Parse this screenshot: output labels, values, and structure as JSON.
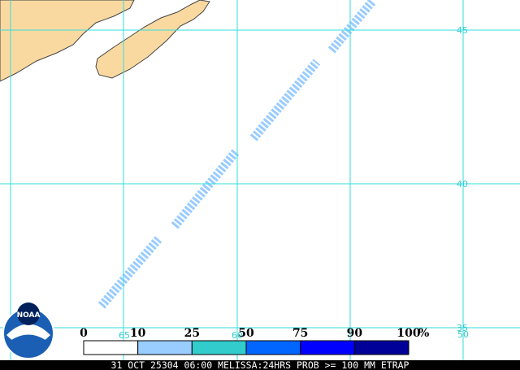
{
  "map": {
    "lat_labels": [
      "45",
      "40",
      "35"
    ],
    "lon_labels": [
      "65",
      "60",
      "50"
    ],
    "legend": {
      "ticks": [
        0,
        10,
        25,
        50,
        75,
        90,
        100
      ],
      "unit": "%",
      "colors": [
        "#ffffff",
        "#99ccff",
        "#33cccc",
        "#0066ff",
        "#0000ff",
        "#000099"
      ]
    },
    "logo": "NOAA",
    "footer": "31 OCT 25304 06:00 MELISSA:24HRS PROB >= 100 MM ETRAP"
  }
}
